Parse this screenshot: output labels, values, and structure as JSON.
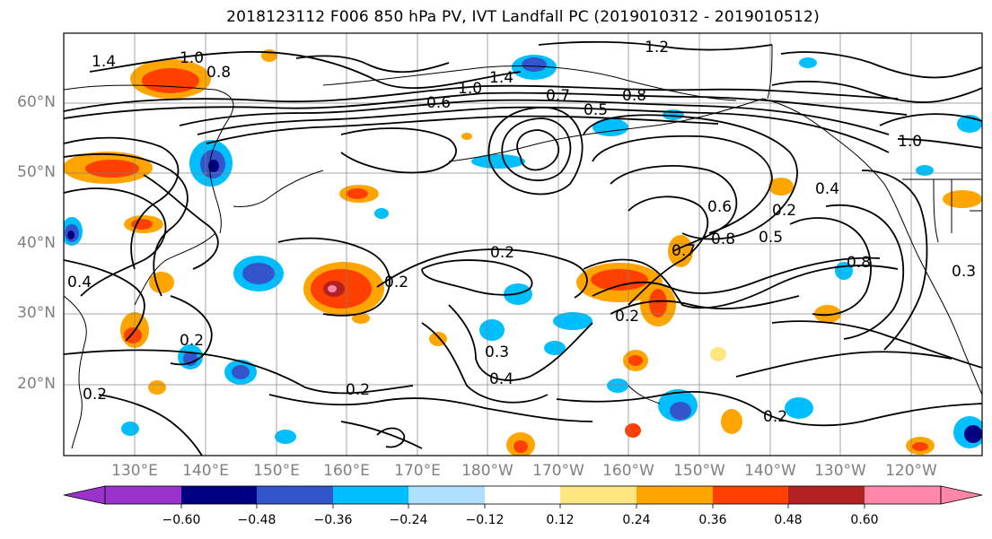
{
  "title": "2018123112 F006 850 hPa PV, IVT Landfall PC (2019010312 - 2019010512)",
  "map": {
    "lat_labels": [
      "60°N",
      "50°N",
      "40°N",
      "30°N",
      "20°N"
    ],
    "lon_labels": [
      "130°E",
      "140°E",
      "150°E",
      "160°E",
      "170°E",
      "180°W",
      "170°W",
      "160°W",
      "150°W",
      "140°W",
      "130°W",
      "120°W"
    ],
    "contour_labels": [
      "1.4",
      "1.0",
      "0.8",
      "1.2",
      "1.4",
      "1.0",
      "0.7",
      "0.8",
      "0.6",
      "0.5",
      "1.0",
      "0.4",
      "0.2",
      "0.2",
      "0.2",
      "0.2",
      "0.2",
      "0.2",
      "0.3",
      "0.4",
      "0.7",
      "0.8",
      "0.5",
      "0.6",
      "0.8",
      "0.3",
      "0.2",
      "0.4",
      "0.2"
    ]
  },
  "colorbar": {
    "ticks": [
      "−0.60",
      "−0.48",
      "−0.36",
      "−0.24",
      "−0.12",
      "0.12",
      "0.24",
      "0.36",
      "0.48",
      "0.60"
    ],
    "colors": [
      "#9933cc",
      "#000080",
      "#3355cc",
      "#00bfff",
      "#b0e0ff",
      "#ffffff",
      "#ffe680",
      "#ffa500",
      "#ff4000",
      "#b22222",
      "#ff88aa"
    ]
  },
  "colors": {
    "contour": "#000000",
    "coast": "#000000",
    "grid": "#808080"
  }
}
